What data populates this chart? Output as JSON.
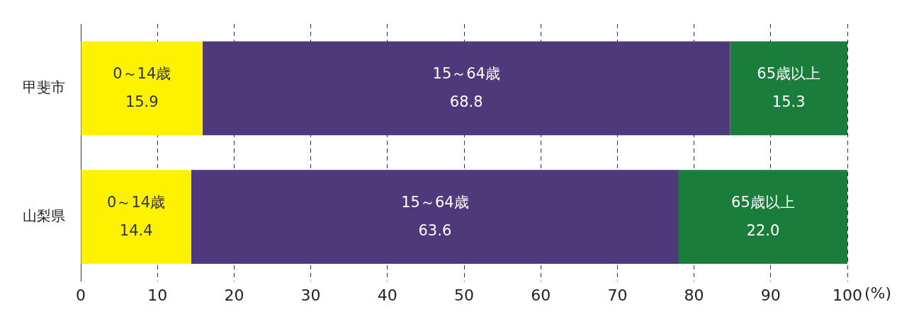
{
  "chart_data": {
    "type": "bar",
    "orientation": "horizontal",
    "stacked": true,
    "categories": [
      "甲斐市",
      "山梨県"
    ],
    "series": [
      {
        "name": "0～14歳",
        "color": "#fff200",
        "values": [
          15.9,
          14.4
        ]
      },
      {
        "name": "15～64歳",
        "color": "#4e3a7a",
        "values": [
          68.8,
          63.6
        ]
      },
      {
        "name": "65歳以上",
        "color": "#1b7d3c",
        "values": [
          15.3,
          22.0
        ],
        "value_labels": [
          "15.3",
          "22.0"
        ]
      }
    ],
    "xlim": [
      0,
      100
    ],
    "xticks": [
      0,
      10,
      20,
      30,
      40,
      50,
      60,
      70,
      80,
      90,
      100
    ],
    "xlabel": "(%)",
    "grid": "x",
    "data_labels": true,
    "legend": false
  }
}
